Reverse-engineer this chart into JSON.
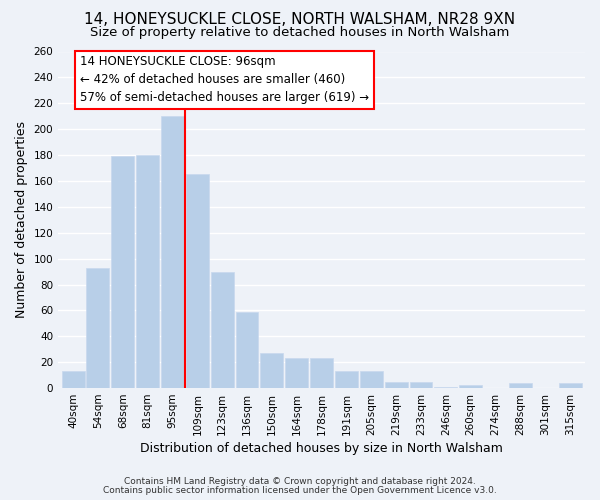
{
  "title": "14, HONEYSUCKLE CLOSE, NORTH WALSHAM, NR28 9XN",
  "subtitle": "Size of property relative to detached houses in North Walsham",
  "xlabel": "Distribution of detached houses by size in North Walsham",
  "ylabel": "Number of detached properties",
  "bar_labels": [
    "40sqm",
    "54sqm",
    "68sqm",
    "81sqm",
    "95sqm",
    "109sqm",
    "123sqm",
    "136sqm",
    "150sqm",
    "164sqm",
    "178sqm",
    "191sqm",
    "205sqm",
    "219sqm",
    "233sqm",
    "246sqm",
    "260sqm",
    "274sqm",
    "288sqm",
    "301sqm",
    "315sqm"
  ],
  "bar_values": [
    13,
    93,
    179,
    180,
    210,
    165,
    90,
    59,
    27,
    23,
    23,
    13,
    13,
    5,
    5,
    1,
    2,
    0,
    4,
    0,
    4
  ],
  "bar_color": "#b8cfe8",
  "bar_edgecolor": "#c8d8ee",
  "vline_x": 4.5,
  "vline_color": "red",
  "annotation_line1": "14 HONEYSUCKLE CLOSE: 96sqm",
  "annotation_line2": "← 42% of detached houses are smaller (460)",
  "annotation_line3": "57% of semi-detached houses are larger (619) →",
  "ylim": [
    0,
    260
  ],
  "yticks": [
    0,
    20,
    40,
    60,
    80,
    100,
    120,
    140,
    160,
    180,
    200,
    220,
    240,
    260
  ],
  "footer1": "Contains HM Land Registry data © Crown copyright and database right 2024.",
  "footer2": "Contains public sector information licensed under the Open Government Licence v3.0.",
  "background_color": "#eef2f8",
  "grid_color": "white",
  "title_fontsize": 11,
  "subtitle_fontsize": 9.5,
  "axis_label_fontsize": 9,
  "tick_fontsize": 7.5,
  "annotation_fontsize": 8.5,
  "footer_fontsize": 6.5
}
